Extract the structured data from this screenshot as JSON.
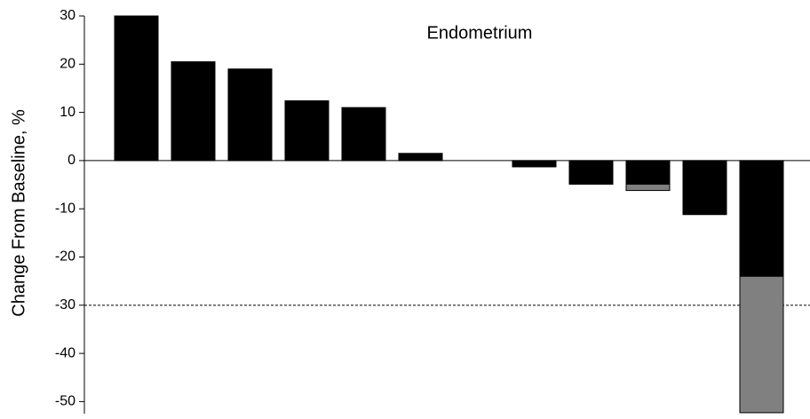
{
  "chart_data": {
    "type": "bar",
    "stacked": true,
    "title": "Endometrium",
    "y_label": "Change From Baseline, %",
    "categories": [
      null,
      null,
      null,
      null,
      null,
      null,
      null,
      null,
      null,
      null,
      null,
      null
    ],
    "series": [
      {
        "color": "#000000",
        "values": [
          30,
          20.5,
          19,
          12.4,
          11,
          1.5,
          null,
          -1.3,
          -4.9,
          -4.9,
          -11.2,
          -24
        ]
      },
      {
        "color": "#808080",
        "values": [
          null,
          null,
          null,
          null,
          null,
          null,
          null,
          null,
          null,
          -1.3,
          null,
          -28.3
        ]
      }
    ],
    "ylim": [
      -52.5,
      30
    ],
    "yticks": [
      -50,
      -40,
      -30,
      -20,
      -10,
      0,
      10,
      20,
      30
    ],
    "reference_line": -30
  }
}
